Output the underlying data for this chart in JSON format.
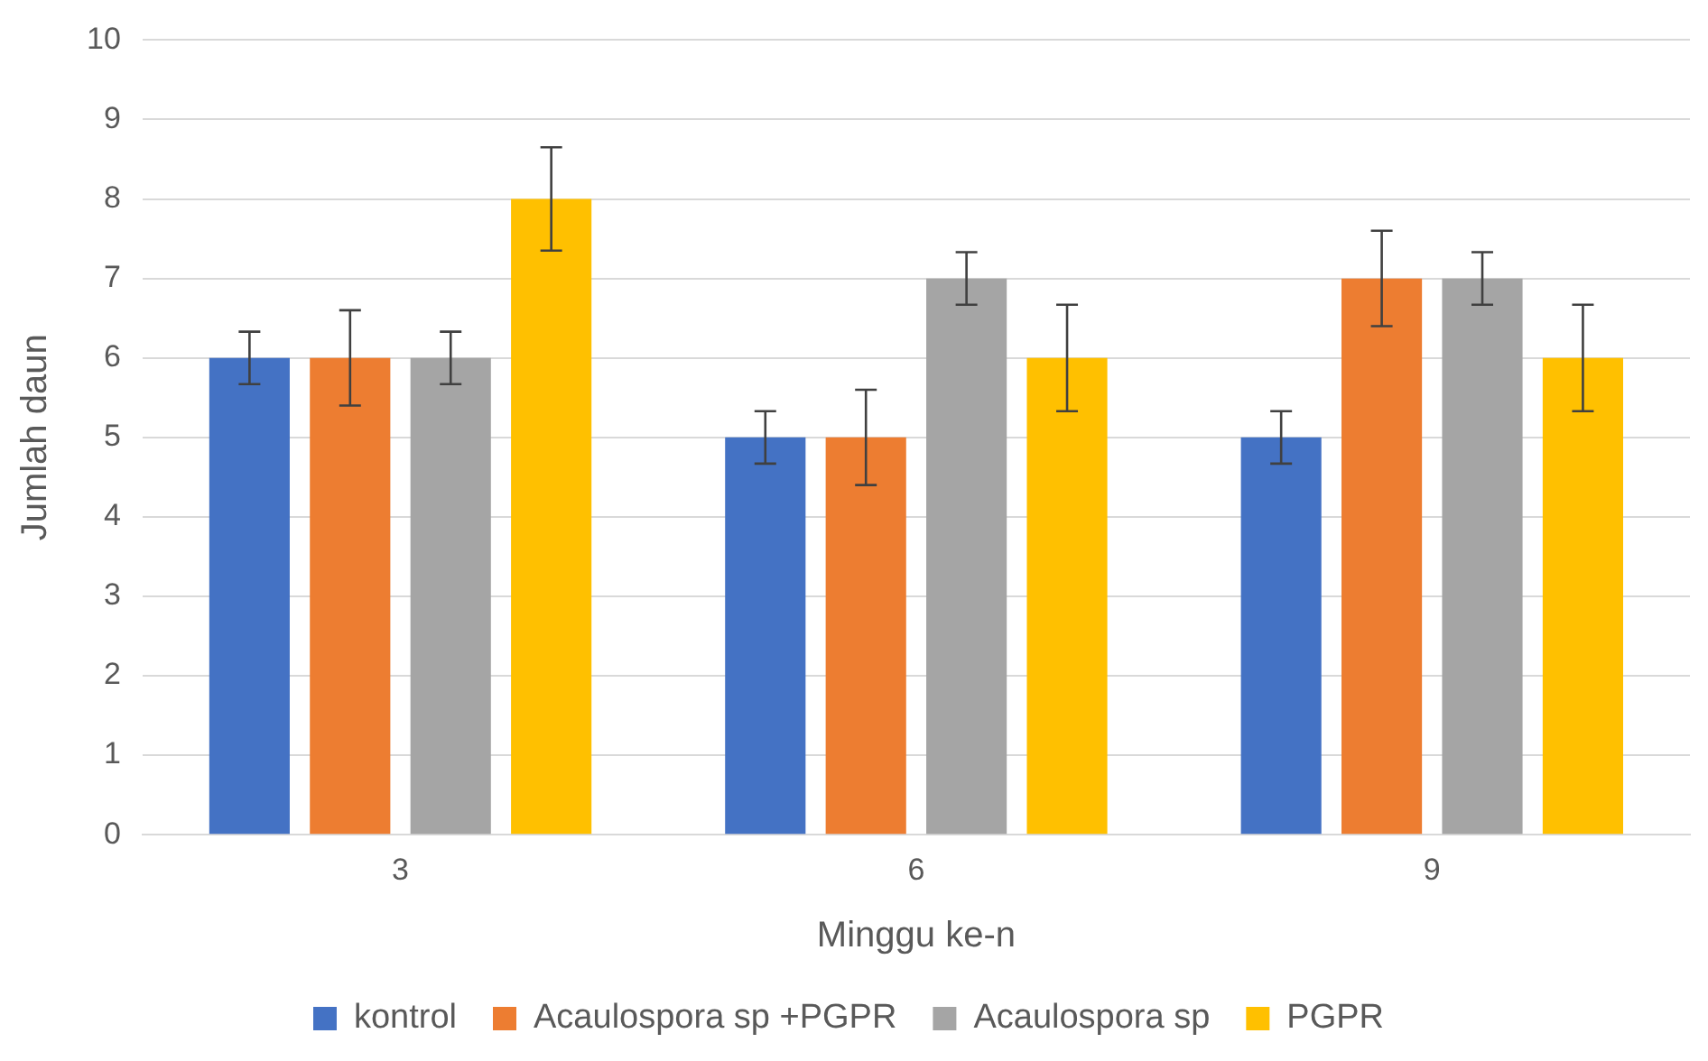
{
  "chart_data": {
    "type": "bar",
    "xlabel": "Minggu ke-n",
    "ylabel": "Jumlah daun",
    "categories": [
      "3",
      "6",
      "9"
    ],
    "series": [
      {
        "name": "kontrol",
        "color": "#4472c4",
        "values": [
          6,
          5,
          5
        ],
        "errors": [
          0.33,
          0.33,
          0.33
        ]
      },
      {
        "name": "Acaulospora sp +PGPR",
        "color": "#ed7d31",
        "values": [
          6,
          5,
          7
        ],
        "errors": [
          0.6,
          0.6,
          0.6
        ]
      },
      {
        "name": "Acaulospora sp",
        "color": "#a5a5a5",
        "values": [
          6,
          7,
          7
        ],
        "errors": [
          0.33,
          0.33,
          0.33
        ]
      },
      {
        "name": "PGPR",
        "color": "#ffc000",
        "values": [
          8,
          6,
          6
        ],
        "errors": [
          0.65,
          0.67,
          0.67
        ]
      }
    ],
    "ylim": [
      0,
      10
    ],
    "yticks": [
      0,
      1,
      2,
      3,
      4,
      5,
      6,
      7,
      8,
      9,
      10
    ],
    "grid": "y",
    "legend": "bottom"
  }
}
